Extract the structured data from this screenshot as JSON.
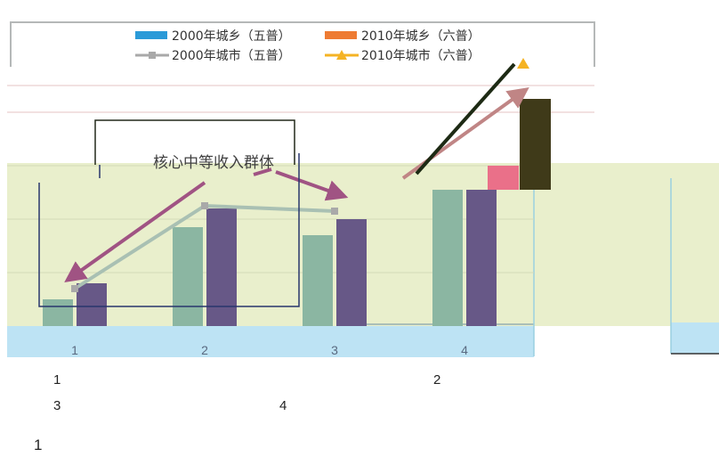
{
  "colors": {
    "page_bg": "#ffffff",
    "band_green": "#e9efcc",
    "band_blue": "#bde3f4",
    "grid_pink": "#e6c3c3",
    "frame_gray": "#b5b8b8",
    "rural_2000": "#2b9ad8",
    "rural_2010": "#ee7b33",
    "urban_2000": "#a9a9a9",
    "urban_2010": "#f5b324",
    "bar_teal": "#8bb6a2",
    "bar_purple": "#675887",
    "arrow_pink": "#a05383",
    "dark_bar": "#3f3a19",
    "pink_bar": "#ea7089",
    "navy_frame": "#29366d"
  },
  "chart_data": {
    "type": "bar",
    "categories": [
      "1",
      "2",
      "3",
      "4"
    ],
    "series": [
      {
        "name": "2000年城乡（五普）",
        "kind": "bar",
        "color": "#2b9ad8",
        "values": [
          1.0,
          3.7,
          3.4,
          5.1
        ]
      },
      {
        "name": "2010年城乡（六普）",
        "kind": "bar",
        "color": "#ee7b33",
        "values": [
          1.6,
          4.4,
          4.0,
          5.1
        ]
      },
      {
        "name": "2000年城市（五普）",
        "kind": "line",
        "color": "#a9a9a9",
        "marker": "square",
        "values": [
          1.4,
          4.5,
          4.3,
          null
        ]
      },
      {
        "name": "2010年城市（六普）",
        "kind": "line",
        "color": "#f5b324",
        "marker": "triangle",
        "values": [
          null,
          null,
          null,
          9.8
        ]
      }
    ],
    "extra_bars_cat4": [
      {
        "color": "#ea7089",
        "base": 5.1,
        "top": 6.0
      },
      {
        "color": "#3f3a19",
        "base": 5.1,
        "top": 8.5
      }
    ],
    "ylim": [
      0,
      10
    ],
    "legend_position": "top",
    "annotation": "核心中等收入群体",
    "gridlines": true
  },
  "notes": {
    "n1": "1",
    "n2": "2",
    "n3": "3",
    "n4": "4",
    "n5": "1"
  }
}
